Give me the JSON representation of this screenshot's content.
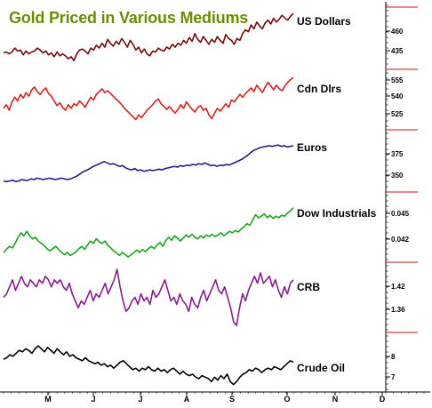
{
  "chart_data": {
    "type": "line",
    "title": "Gold Priced in Various Mediums",
    "xlabel": "",
    "ylabel": "",
    "grid": false,
    "x_ticks": [
      "M",
      "J",
      "J",
      "A",
      "S",
      "O",
      "N",
      "D"
    ],
    "series": [
      {
        "name": "US Dollars",
        "color": "#7a0a0a",
        "y_ticks": [
          "460",
          "435"
        ],
        "ylim": [
          410,
          480
        ],
        "values": [
          427,
          428,
          426,
          428,
          432,
          429,
          430,
          425,
          429,
          426,
          428,
          429,
          432,
          430,
          427,
          429,
          425,
          427,
          423,
          428,
          424,
          426,
          424,
          421,
          423,
          419,
          426,
          430,
          431,
          429,
          426,
          432,
          430,
          435,
          432,
          437,
          433,
          441,
          437,
          434,
          439,
          436,
          442,
          438,
          433,
          440,
          436,
          430,
          433,
          427,
          431,
          426,
          424,
          429,
          428,
          432,
          430,
          429,
          433,
          431,
          436,
          433,
          437,
          435,
          440,
          437,
          443,
          439,
          447,
          441,
          438,
          444,
          440,
          436,
          441,
          438,
          444,
          440,
          437,
          446,
          442,
          440,
          436,
          442,
          440,
          447,
          451,
          449,
          456,
          452,
          459,
          455,
          452,
          458,
          461,
          457,
          463,
          459,
          462,
          466,
          463,
          461,
          465,
          468
        ]
      },
      {
        "name": "Cdn Dlrs",
        "color": "#e0201b",
        "y_ticks": [
          "555",
          "540",
          "525"
        ],
        "ylim": [
          505,
          570
        ],
        "values": [
          528,
          532,
          526,
          535,
          540,
          536,
          543,
          539,
          545,
          541,
          548,
          551,
          546,
          543,
          547,
          550,
          544,
          541,
          536,
          531,
          534,
          529,
          526,
          532,
          528,
          533,
          531,
          536,
          533,
          529,
          535,
          540,
          537,
          543,
          546,
          549,
          545,
          547,
          544,
          541,
          538,
          535,
          532,
          528,
          525,
          522,
          519,
          516,
          521,
          518,
          522,
          526,
          529,
          532,
          536,
          538,
          533,
          530,
          527,
          530,
          526,
          523,
          527,
          532,
          528,
          535,
          531,
          527,
          524,
          529,
          531,
          526,
          528,
          521,
          517,
          523,
          528,
          525,
          529,
          533,
          529,
          537,
          535,
          539,
          543,
          540,
          544,
          547,
          550,
          546,
          553,
          549,
          545,
          551,
          556,
          552,
          548,
          553,
          549,
          547,
          552,
          556,
          559,
          561
        ]
      },
      {
        "name": "Euros",
        "color": "#2a1a8e",
        "y_ticks": [
          "375",
          "350"
        ],
        "ylim": [
          320,
          410
        ],
        "values": [
          336,
          335,
          336,
          337,
          335,
          336,
          338,
          337,
          337,
          339,
          338,
          340,
          339,
          338,
          339,
          340,
          339,
          338,
          339,
          340,
          339,
          338,
          339,
          341,
          343,
          346,
          349,
          351,
          353,
          356,
          358,
          360,
          362,
          364,
          362,
          360,
          361,
          359,
          357,
          358,
          355,
          353,
          352,
          354,
          351,
          352,
          350,
          351,
          352,
          351,
          352,
          353,
          352,
          354,
          355,
          356,
          357,
          356,
          358,
          357,
          359,
          358,
          360,
          359,
          361,
          360,
          362,
          360,
          358,
          359,
          357,
          359,
          358,
          360,
          359,
          361,
          363,
          365,
          367,
          370,
          373,
          377,
          380,
          382,
          384,
          385,
          386,
          387,
          386,
          387,
          388,
          386,
          387,
          385,
          386,
          387
        ]
      },
      {
        "name": "Dow Industrials",
        "color": "#15a81a",
        "y_ticks": [
          "0.045",
          "0.042"
        ],
        "ylim": [
          0.0385,
          0.0478
        ],
        "values": [
          0.0398,
          0.0402,
          0.0406,
          0.0404,
          0.041,
          0.0418,
          0.0424,
          0.042,
          0.0426,
          0.042,
          0.0416,
          0.0418,
          0.0413,
          0.041,
          0.0407,
          0.0403,
          0.04,
          0.0403,
          0.0406,
          0.0402,
          0.0398,
          0.0395,
          0.0398,
          0.0394,
          0.0396,
          0.0399,
          0.0403,
          0.0406,
          0.0402,
          0.0408,
          0.0413,
          0.041,
          0.0416,
          0.0412,
          0.041,
          0.0413,
          0.0407,
          0.0404,
          0.04,
          0.0397,
          0.0394,
          0.0398,
          0.0395,
          0.0392,
          0.0395,
          0.0398,
          0.0401,
          0.0398,
          0.0402,
          0.0399,
          0.0403,
          0.0406,
          0.0403,
          0.0408,
          0.0411,
          0.0406,
          0.0414,
          0.0418,
          0.0414,
          0.042,
          0.0417,
          0.0413,
          0.0417,
          0.0421,
          0.0418,
          0.0422,
          0.0418,
          0.0416,
          0.042,
          0.0417,
          0.0421,
          0.0419,
          0.0422,
          0.0419,
          0.0421,
          0.0424,
          0.042,
          0.0423,
          0.0426,
          0.0424,
          0.0427,
          0.0425,
          0.0429,
          0.0432,
          0.0436,
          0.0434,
          0.0441,
          0.0448,
          0.0444,
          0.0446,
          0.0449,
          0.0444,
          0.0447,
          0.0443,
          0.0446,
          0.0444,
          0.0447,
          0.0446,
          0.045,
          0.0453,
          0.0457
        ]
      },
      {
        "name": "CRB",
        "color": "#8e1a96",
        "y_ticks": [
          "1.42",
          "1.36"
        ],
        "ylim": [
          1.29,
          1.49
        ],
        "values": [
          1.39,
          1.4,
          1.42,
          1.44,
          1.41,
          1.43,
          1.45,
          1.43,
          1.42,
          1.44,
          1.43,
          1.42,
          1.44,
          1.43,
          1.45,
          1.44,
          1.42,
          1.44,
          1.43,
          1.44,
          1.42,
          1.41,
          1.43,
          1.4,
          1.38,
          1.36,
          1.38,
          1.37,
          1.39,
          1.41,
          1.38,
          1.4,
          1.39,
          1.41,
          1.43,
          1.4,
          1.42,
          1.44,
          1.47,
          1.42,
          1.38,
          1.35,
          1.36,
          1.38,
          1.39,
          1.37,
          1.4,
          1.38,
          1.39,
          1.37,
          1.41,
          1.39,
          1.4,
          1.42,
          1.44,
          1.41,
          1.38,
          1.39,
          1.37,
          1.4,
          1.38,
          1.37,
          1.35,
          1.39,
          1.37,
          1.36,
          1.39,
          1.41,
          1.38,
          1.4,
          1.42,
          1.44,
          1.41,
          1.4,
          1.42,
          1.39,
          1.36,
          1.32,
          1.31,
          1.36,
          1.4,
          1.38,
          1.41,
          1.43,
          1.45,
          1.43,
          1.46,
          1.43,
          1.44,
          1.45,
          1.42,
          1.44,
          1.41,
          1.39,
          1.42,
          1.4,
          1.43,
          1.44
        ]
      },
      {
        "name": "Crude Oil",
        "color": "#000000",
        "y_ticks": [
          "8",
          "7"
        ],
        "ylim": [
          5.7,
          9.7
        ],
        "values": [
          7.9,
          8.0,
          8.2,
          8.1,
          8.3,
          8.5,
          8.4,
          8.6,
          8.5,
          8.3,
          8.6,
          8.8,
          8.6,
          8.4,
          8.7,
          8.5,
          8.3,
          8.6,
          8.4,
          8.2,
          8.4,
          8.1,
          8.2,
          8.0,
          7.9,
          7.8,
          8.0,
          7.8,
          7.7,
          7.6,
          7.7,
          7.5,
          7.6,
          7.4,
          7.5,
          7.3,
          7.5,
          7.7,
          7.8,
          7.6,
          7.4,
          7.2,
          7.3,
          7.1,
          7.3,
          7.2,
          7.4,
          7.2,
          7.1,
          7.3,
          7.1,
          7.2,
          7.0,
          7.2,
          7.3,
          7.1,
          6.9,
          7.1,
          6.9,
          6.8,
          6.9,
          6.7,
          6.6,
          6.8,
          6.7,
          6.6,
          6.4,
          6.7,
          6.5,
          6.8,
          6.6,
          6.9,
          6.4,
          6.2,
          6.4,
          6.7,
          6.9,
          7.0,
          7.2,
          7.1,
          7.3,
          7.2,
          7.0,
          7.2,
          7.3,
          7.2,
          7.4,
          7.3,
          7.2,
          7.4,
          7.6,
          7.8,
          7.7
        ]
      }
    ]
  }
}
